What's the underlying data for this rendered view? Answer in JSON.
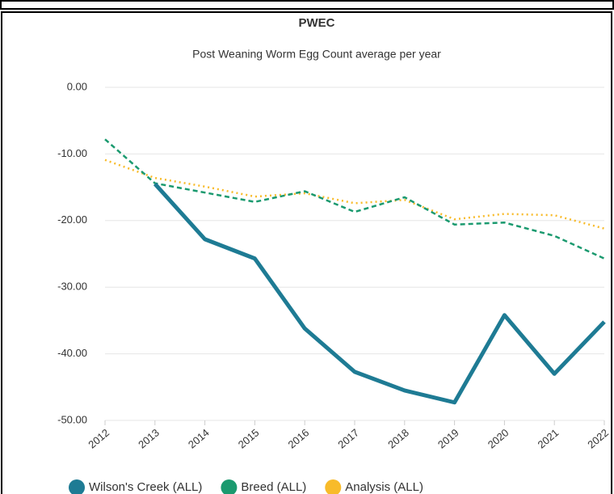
{
  "chart_data": {
    "type": "line",
    "title": "PWEC",
    "subtitle": "Post Weaning Worm Egg Count average per year",
    "categories": [
      "2012",
      "2013",
      "2014",
      "2015",
      "2016",
      "2017",
      "2018",
      "2019",
      "2020",
      "2021",
      "2022"
    ],
    "series": [
      {
        "name": "Wilson's Creek (ALL)",
        "color": "#1e7b94",
        "line_style": "solid",
        "values": [
          null,
          -14.5,
          -22.8,
          -25.7,
          -36.2,
          -42.7,
          -45.5,
          -47.3,
          -34.2,
          -43.0,
          -35.2
        ]
      },
      {
        "name": "Breed (ALL)",
        "color": "#1b9a6f",
        "line_style": "dashed",
        "values": [
          -7.8,
          -14.4,
          -15.8,
          -17.2,
          -15.6,
          -18.7,
          -16.5,
          -20.6,
          -20.3,
          -22.3,
          -25.7
        ]
      },
      {
        "name": "Analysis (ALL)",
        "color": "#f8bb2a",
        "line_style": "dotted",
        "values": [
          -10.9,
          -13.6,
          -14.9,
          -16.4,
          -15.9,
          -17.4,
          -16.9,
          -19.8,
          -19.0,
          -19.2,
          -21.2
        ]
      }
    ],
    "ylim": [
      -50,
      0
    ],
    "yticks": [
      {
        "value": 0,
        "label": "0.00"
      },
      {
        "value": -10,
        "label": "-10.00"
      },
      {
        "value": -20,
        "label": "-20.00"
      },
      {
        "value": -30,
        "label": "-30.00"
      },
      {
        "value": -40,
        "label": "-40.00"
      },
      {
        "value": -50,
        "label": "-50.00"
      }
    ],
    "grid": true,
    "legend": "bottom"
  }
}
